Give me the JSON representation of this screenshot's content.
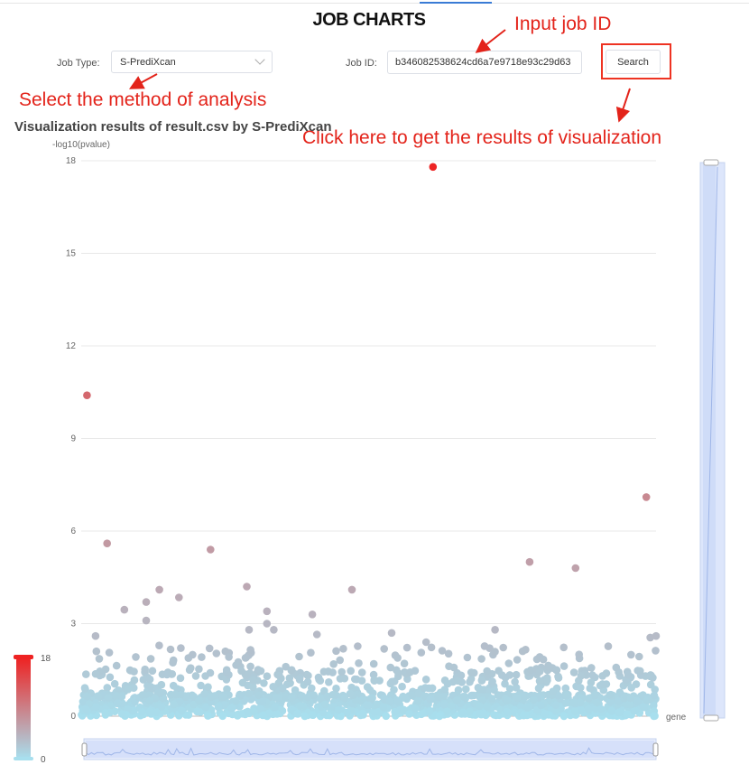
{
  "page": {
    "title": "JOB CHARTS"
  },
  "form": {
    "job_type_label": "Job Type:",
    "job_type_value": "S-PrediXcan",
    "job_id_label": "Job ID:",
    "job_id_value": "b346082538624cd6a7e9718e93c29d63",
    "search_label": "Search"
  },
  "annotations": {
    "input_job_id": "Input job ID",
    "select_method": "Select the method of analysis",
    "click_here": "Click here to get the results of visualization"
  },
  "colors": {
    "annotation": "#e3231a",
    "low": "#a8dfee",
    "high": "#ee2222"
  },
  "chart_data": {
    "type": "scatter",
    "title": "Visualization results of result.csv by S-PrediXcan",
    "ylabel": "-log10(pvalue)",
    "xlabel": "gene",
    "ylim": [
      0,
      18
    ],
    "yticks": [
      0,
      3,
      6,
      9,
      12,
      15,
      18
    ],
    "visual_map": {
      "min": 0,
      "max": 18,
      "min_label": "0",
      "max_label": "18"
    },
    "n_genes": 1000,
    "highlight_points": [
      {
        "x": 10,
        "y": 10.4
      },
      {
        "x": 45,
        "y": 5.6
      },
      {
        "x": 225,
        "y": 5.4
      },
      {
        "x": 780,
        "y": 5.0
      },
      {
        "x": 612,
        "y": 17.8
      },
      {
        "x": 983,
        "y": 7.1
      },
      {
        "x": 860,
        "y": 4.8
      },
      {
        "x": 136,
        "y": 4.1
      },
      {
        "x": 288,
        "y": 4.2
      },
      {
        "x": 471,
        "y": 4.1
      },
      {
        "x": 113,
        "y": 3.7
      },
      {
        "x": 170,
        "y": 3.85
      },
      {
        "x": 75,
        "y": 3.45
      },
      {
        "x": 113,
        "y": 3.1
      },
      {
        "x": 323,
        "y": 3.4
      },
      {
        "x": 323,
        "y": 3.0
      },
      {
        "x": 402,
        "y": 3.3
      },
      {
        "x": 292,
        "y": 2.8
      },
      {
        "x": 335,
        "y": 2.8
      },
      {
        "x": 720,
        "y": 2.8
      },
      {
        "x": 990,
        "y": 2.55
      },
      {
        "x": 1000,
        "y": 2.6
      },
      {
        "x": 410,
        "y": 2.65
      },
      {
        "x": 540,
        "y": 2.7
      },
      {
        "x": 600,
        "y": 2.4
      },
      {
        "x": 25,
        "y": 2.6
      }
    ]
  }
}
